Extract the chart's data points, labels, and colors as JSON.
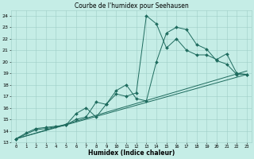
{
  "title": "Courbe de l'humidex pour Seehausen",
  "xlabel": "Humidex (Indice chaleur)",
  "xlim": [
    -0.5,
    23.5
  ],
  "ylim": [
    13,
    24.5
  ],
  "yticks": [
    13,
    14,
    15,
    16,
    17,
    18,
    19,
    20,
    21,
    22,
    23,
    24
  ],
  "xticks": [
    0,
    1,
    2,
    3,
    4,
    5,
    6,
    7,
    8,
    9,
    10,
    11,
    12,
    13,
    14,
    15,
    16,
    17,
    18,
    19,
    20,
    21,
    22,
    23
  ],
  "line_color": "#1E6B5E",
  "bg_color": "#C5EDE6",
  "grid_color": "#9ECEC6",
  "lines": [
    {
      "x": [
        0,
        1,
        2,
        3,
        4,
        5,
        6,
        7,
        8,
        9,
        10,
        11,
        12,
        13,
        14,
        15,
        16,
        17,
        18,
        19,
        20,
        21,
        22,
        23
      ],
      "y": [
        13.3,
        13.8,
        14.2,
        14.3,
        14.4,
        14.5,
        15.0,
        15.2,
        16.5,
        16.3,
        17.5,
        18.0,
        16.8,
        16.6,
        20.0,
        22.5,
        23.0,
        22.8,
        21.5,
        21.1,
        20.1,
        19.8,
        18.9,
        18.9
      ],
      "marker": true
    },
    {
      "x": [
        0,
        2,
        3,
        5,
        6,
        7,
        8,
        9,
        10,
        11,
        12,
        13,
        14,
        15,
        16,
        17,
        18,
        19,
        20,
        21,
        22,
        23
      ],
      "y": [
        13.3,
        14.1,
        14.2,
        14.5,
        15.5,
        16.0,
        15.2,
        16.3,
        17.2,
        17.0,
        17.3,
        24.0,
        23.3,
        21.2,
        22.0,
        21.0,
        20.6,
        20.6,
        20.2,
        20.7,
        19.0,
        18.9
      ],
      "marker": true
    },
    {
      "x": [
        0,
        23
      ],
      "y": [
        13.3,
        18.9
      ],
      "marker": false
    },
    {
      "x": [
        0,
        23
      ],
      "y": [
        13.3,
        19.2
      ],
      "marker": false
    }
  ]
}
